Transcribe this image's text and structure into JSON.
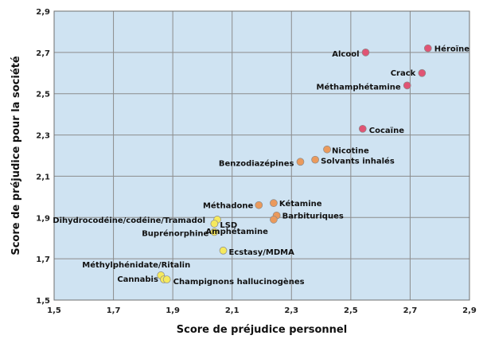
{
  "chart_data": {
    "type": "scatter",
    "title": "",
    "xlabel": "Score de préjudice personnel",
    "ylabel": "Score de préjudice pour la société",
    "xlim": [
      1.5,
      2.9
    ],
    "ylim": [
      1.5,
      2.9
    ],
    "xticks": [
      "1,5",
      "1,7",
      "1,9",
      "2,1",
      "2,3",
      "2,5",
      "2,7",
      "2,9"
    ],
    "yticks": [
      "1,5",
      "1,7",
      "1,9",
      "2,1",
      "2,3",
      "2,5",
      "2,7",
      "2,9"
    ],
    "grid": true,
    "legend": "none",
    "colors": {
      "plot_background": "#cfe3f2",
      "grid": "#8c8c8c",
      "high_harm": "#e05474",
      "medium_harm": "#eb9a5c",
      "low_harm": "#f5e95d",
      "marker_stroke": "#8a8a8a"
    },
    "points": [
      {
        "label": "Héroïne",
        "x": 2.76,
        "y": 2.72,
        "group": "high_harm"
      },
      {
        "label": "Alcool",
        "x": 2.55,
        "y": 2.7,
        "group": "high_harm"
      },
      {
        "label": "Crack",
        "x": 2.74,
        "y": 2.6,
        "group": "high_harm"
      },
      {
        "label": "Méthamphétamine",
        "x": 2.69,
        "y": 2.54,
        "group": "high_harm"
      },
      {
        "label": "Cocaïne",
        "x": 2.54,
        "y": 2.33,
        "group": "high_harm"
      },
      {
        "label": "Nicotine",
        "x": 2.42,
        "y": 2.23,
        "group": "medium_harm"
      },
      {
        "label": "Solvants inhalés",
        "x": 2.38,
        "y": 2.18,
        "group": "medium_harm"
      },
      {
        "label": "Benzodiazépines",
        "x": 2.33,
        "y": 2.17,
        "group": "medium_harm"
      },
      {
        "label": "Méthadone",
        "x": 2.19,
        "y": 1.96,
        "group": "medium_harm"
      },
      {
        "label": "Kétamine",
        "x": 2.24,
        "y": 1.97,
        "group": "medium_harm"
      },
      {
        "label": "Barbituriques",
        "x": 2.25,
        "y": 1.91,
        "group": "medium_harm"
      },
      {
        "label": "Amphétamine",
        "x": 2.24,
        "y": 1.89,
        "group": "medium_harm"
      },
      {
        "label": "Dihydrocodéine/codéine/Tramadol",
        "x": 2.05,
        "y": 1.89,
        "group": "low_harm"
      },
      {
        "label": "LSD",
        "x": 2.04,
        "y": 1.87,
        "group": "low_harm"
      },
      {
        "label": "Buprénorphine",
        "x": 2.04,
        "y": 1.83,
        "group": "low_harm"
      },
      {
        "label": "Ecstasy/MDMA",
        "x": 2.07,
        "y": 1.74,
        "group": "low_harm"
      },
      {
        "label": "Méthylphénidate/Ritalin",
        "x": 1.86,
        "y": 1.62,
        "group": "low_harm"
      },
      {
        "label": "Cannabis",
        "x": 1.87,
        "y": 1.6,
        "group": "low_harm"
      },
      {
        "label": "Champignons hallucinogènes",
        "x": 1.88,
        "y": 1.6,
        "group": "low_harm"
      }
    ]
  }
}
